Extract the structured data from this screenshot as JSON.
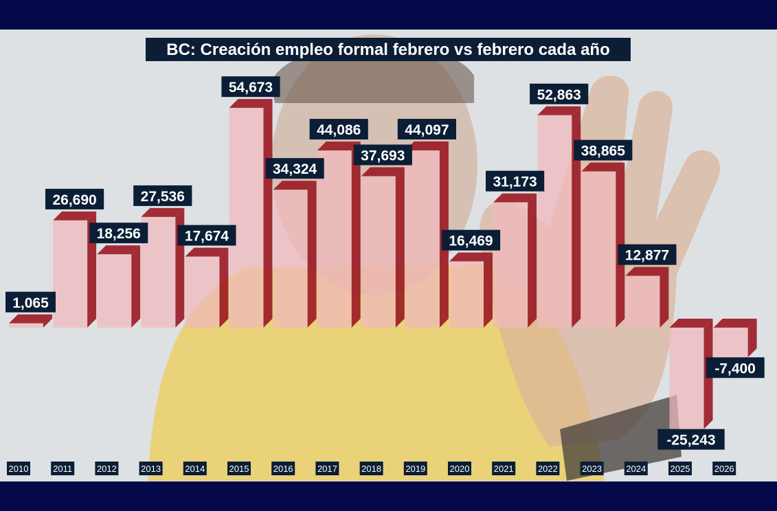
{
  "colors": {
    "frame": "#05094a",
    "bar_face": "#f1b8bc",
    "bar_side": "#9c1c26",
    "label_bg": "#0b1e36",
    "label_text": "#ffffff",
    "photo_yellow": "#e9c53d",
    "photo_skin": "#c99a7e",
    "background": "#d9dde0"
  },
  "chart_data": {
    "type": "bar",
    "title": "BC: Creación empleo formal febrero vs febrero cada año",
    "categories": [
      "2010",
      "2011",
      "2012",
      "2013",
      "2014",
      "2015",
      "2016",
      "2017",
      "2018",
      "2019",
      "2020",
      "2021",
      "2022",
      "2023",
      "2024",
      "2025",
      "2026"
    ],
    "values": [
      1065,
      26690,
      18256,
      27536,
      17674,
      54673,
      34324,
      44086,
      37693,
      44097,
      16469,
      31173,
      52863,
      38865,
      12877,
      -25243,
      -7400
    ],
    "data_labels": [
      "1,065",
      "26,690",
      "18,256",
      "27,536",
      "17,674",
      "54,673",
      "34,324",
      "44,086",
      "37,693",
      "44,097",
      "16,469",
      "31,173",
      "52,863",
      "38,865",
      "12,877",
      "-25,243",
      "-7,400"
    ],
    "xlabel": "",
    "ylabel": "",
    "ylim": [
      -30000,
      60000
    ],
    "grid": false,
    "legend": "none",
    "style": "3d-bar"
  }
}
